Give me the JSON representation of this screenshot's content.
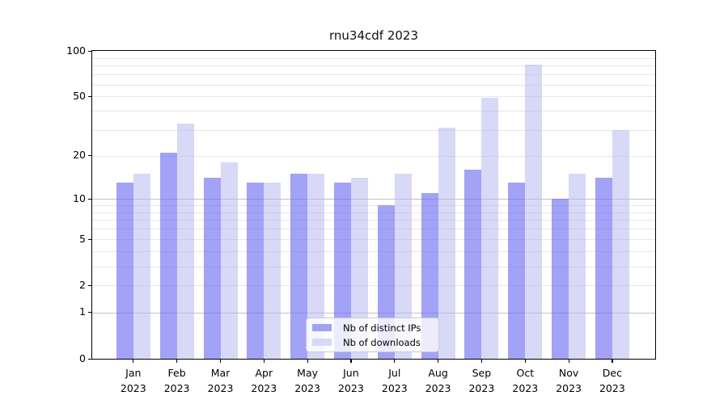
{
  "title": "rnu34cdf 2023",
  "chart_data": {
    "type": "bar",
    "categories": [
      "Jan 2023",
      "Feb 2023",
      "Mar 2023",
      "Apr 2023",
      "May 2023",
      "Jun 2023",
      "Jul 2023",
      "Aug 2023",
      "Sep 2023",
      "Oct 2023",
      "Nov 2023",
      "Dec 2023"
    ],
    "x_tick_months": [
      "Jan",
      "Feb",
      "Mar",
      "Apr",
      "May",
      "Jun",
      "Jul",
      "Aug",
      "Sep",
      "Oct",
      "Nov",
      "Dec"
    ],
    "x_tick_year": "2023",
    "series": [
      {
        "name": "Nb of distinct IPs",
        "color": "#a2a2f2",
        "fill": "rgba(105,105,240,0.62)",
        "values": [
          13,
          21,
          14,
          13,
          15,
          13,
          9,
          11,
          16,
          13,
          10,
          14
        ]
      },
      {
        "name": "Nb of downloads",
        "color": "#d8d8f8",
        "fill": "rgba(180,180,240,0.52)",
        "values": [
          15,
          33,
          18,
          13,
          15,
          14,
          15,
          31,
          49,
          81,
          15,
          30
        ]
      }
    ],
    "yscale": "log1p",
    "ylim": [
      0,
      100
    ],
    "yticks": [
      0,
      1,
      2,
      5,
      10,
      20,
      50,
      100
    ],
    "grid_major": [
      1,
      10
    ],
    "grid_minor": [
      2,
      3,
      4,
      5,
      6,
      7,
      8,
      9,
      20,
      30,
      40,
      50,
      60,
      70,
      80,
      90
    ],
    "legend_position": "lower center",
    "grid": true
  },
  "colors": {
    "grid_minor": "#e7e7e7",
    "grid_major": "#c3c3c3",
    "spine": "#000000",
    "background": "#ffffff"
  }
}
